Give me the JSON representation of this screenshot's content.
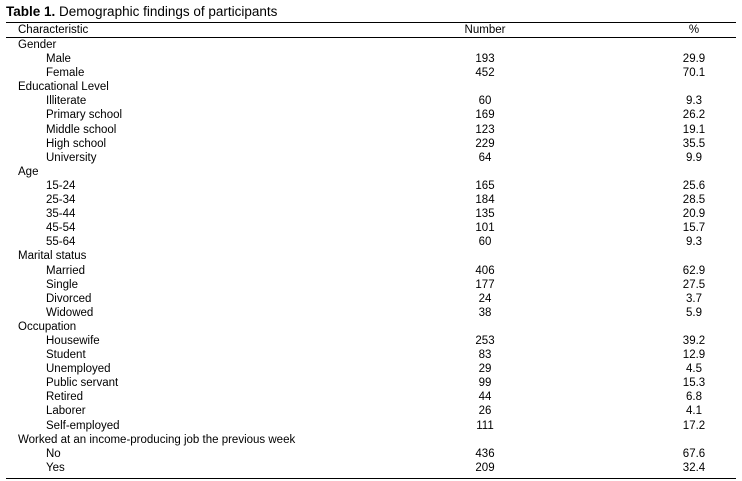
{
  "caption": {
    "label": "Table 1.",
    "title": "Demographic findings of participants"
  },
  "header": {
    "characteristic": "Characteristic",
    "number": "Number",
    "percent": "%"
  },
  "rows": [
    {
      "label": "Gender",
      "group": true
    },
    {
      "label": "Male",
      "number": "193",
      "percent": "29.9"
    },
    {
      "label": "Female",
      "number": "452",
      "percent": "70.1"
    },
    {
      "label": "Educational Level",
      "group": true
    },
    {
      "label": "Illiterate",
      "number": "60",
      "percent": "9.3"
    },
    {
      "label": "Primary school",
      "number": "169",
      "percent": "26.2"
    },
    {
      "label": "Middle school",
      "number": "123",
      "percent": "19.1"
    },
    {
      "label": "High school",
      "number": "229",
      "percent": "35.5"
    },
    {
      "label": "University",
      "number": "64",
      "percent": "9.9"
    },
    {
      "label": "Age",
      "group": true
    },
    {
      "label": "15-24",
      "number": "165",
      "percent": "25.6"
    },
    {
      "label": "25-34",
      "number": "184",
      "percent": "28.5"
    },
    {
      "label": "35-44",
      "number": "135",
      "percent": "20.9"
    },
    {
      "label": "45-54",
      "number": "101",
      "percent": "15.7"
    },
    {
      "label": "55-64",
      "number": "60",
      "percent": "9.3"
    },
    {
      "label": "Marital status",
      "group": true
    },
    {
      "label": "Married",
      "number": "406",
      "percent": "62.9"
    },
    {
      "label": "Single",
      "number": "177",
      "percent": "27.5"
    },
    {
      "label": "Divorced",
      "number": "24",
      "percent": "3.7"
    },
    {
      "label": "Widowed",
      "number": "38",
      "percent": "5.9"
    },
    {
      "label": "Occupation",
      "group": true
    },
    {
      "label": "Housewife",
      "number": "253",
      "percent": "39.2"
    },
    {
      "label": "Student",
      "number": "83",
      "percent": "12.9"
    },
    {
      "label": "Unemployed",
      "number": "29",
      "percent": "4.5"
    },
    {
      "label": "Public servant",
      "number": "99",
      "percent": "15.3"
    },
    {
      "label": "Retired",
      "number": "44",
      "percent": "6.8"
    },
    {
      "label": "Laborer",
      "number": "26",
      "percent": "4.1"
    },
    {
      "label": "Self-employed",
      "number": "111",
      "percent": "17.2"
    },
    {
      "label": "Worked at an income-producing job the previous week",
      "group": true
    },
    {
      "label": "No",
      "number": "436",
      "percent": "67.6"
    },
    {
      "label": "Yes",
      "number": "209",
      "percent": "32.4"
    }
  ]
}
